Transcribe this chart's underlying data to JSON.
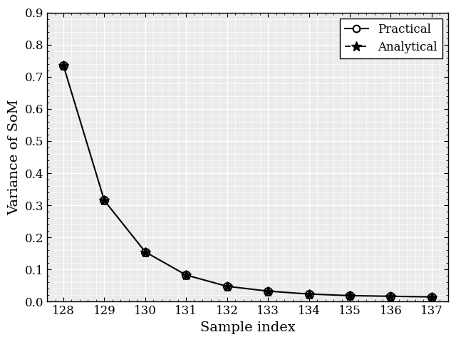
{
  "x": [
    128,
    129,
    130,
    131,
    132,
    133,
    134,
    135,
    136,
    137
  ],
  "practical": [
    0.735,
    0.315,
    0.155,
    0.083,
    0.048,
    0.033,
    0.024,
    0.019,
    0.017,
    0.015
  ],
  "analytical": [
    0.735,
    0.315,
    0.155,
    0.083,
    0.048,
    0.033,
    0.024,
    0.019,
    0.017,
    0.015
  ],
  "xlabel": "Sample index",
  "ylabel": "Variance of SoM",
  "xlim": [
    127.6,
    137.4
  ],
  "ylim": [
    0,
    0.9
  ],
  "yticks": [
    0,
    0.1,
    0.2,
    0.3,
    0.4,
    0.5,
    0.6,
    0.7,
    0.8,
    0.9
  ],
  "xticks": [
    128,
    129,
    130,
    131,
    132,
    133,
    134,
    135,
    136,
    137
  ],
  "legend_practical": "Practical",
  "legend_analytical": "Analytical",
  "line_color": "#000000",
  "background_color": "#ebebeb",
  "grid_color": "#ffffff",
  "title_fontsize": 13,
  "label_fontsize": 14,
  "tick_fontsize": 12
}
